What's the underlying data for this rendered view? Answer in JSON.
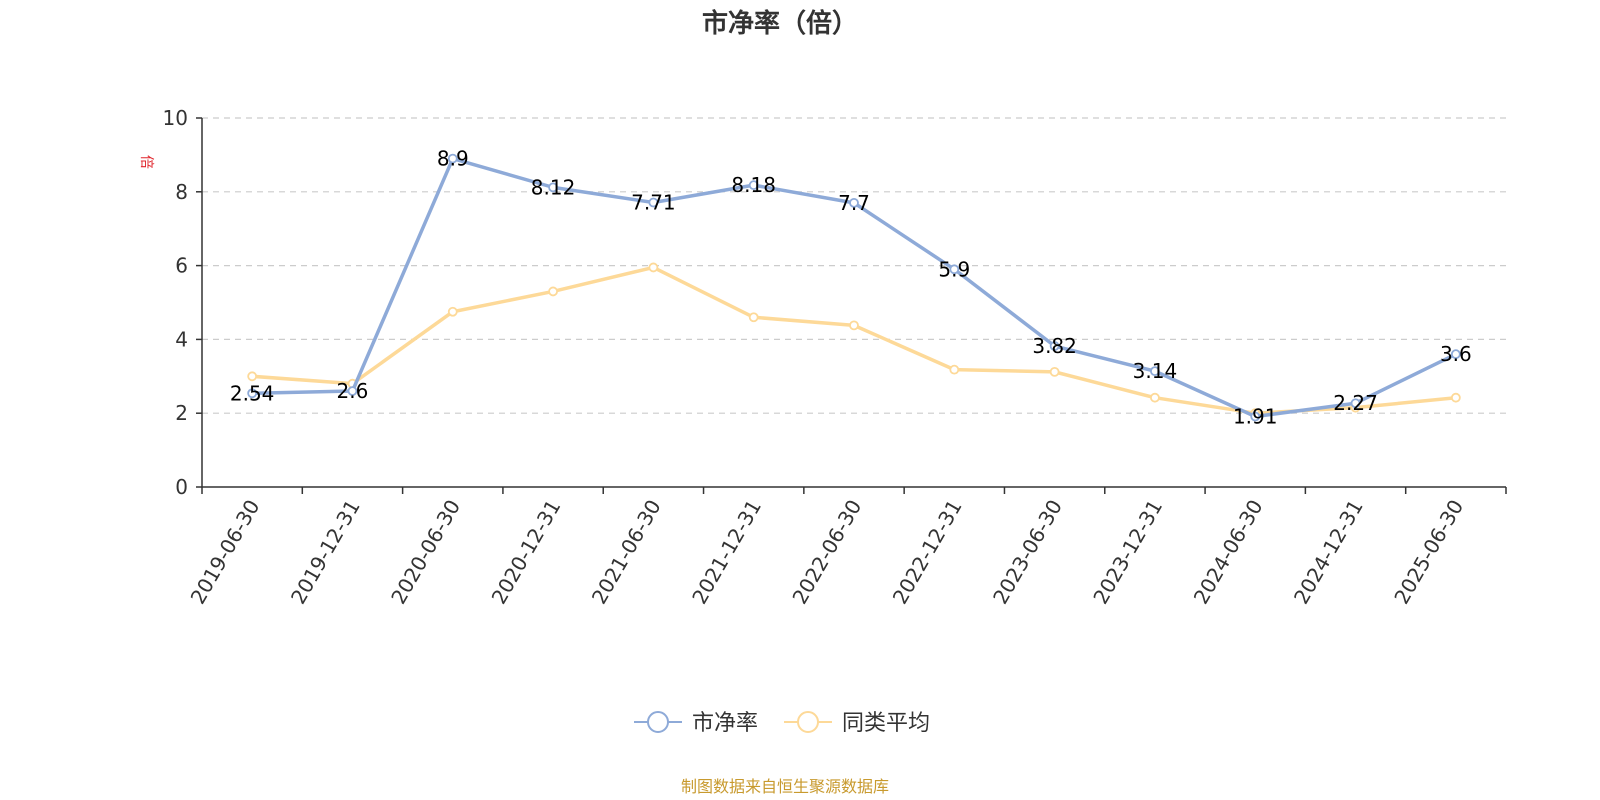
{
  "chart_data": {
    "type": "line",
    "title": "市净率（倍）",
    "ylabel": "倍",
    "xlabel": "",
    "ylim": [
      0,
      10
    ],
    "yticks": [
      "0",
      "2",
      "4",
      "6",
      "8",
      "10"
    ],
    "grid": true,
    "legend_position": "bottom-center",
    "categories": [
      "2019-06-30",
      "2019-12-31",
      "2020-06-30",
      "2020-12-31",
      "2021-06-30",
      "2021-12-31",
      "2022-06-30",
      "2022-12-31",
      "2023-06-30",
      "2023-12-31",
      "2024-06-30",
      "2024-12-31",
      "2025-06-30"
    ],
    "series": [
      {
        "name": "市净率",
        "color": "#8eaad8",
        "values": [
          2.54,
          2.6,
          8.9,
          8.12,
          7.71,
          8.18,
          7.7,
          5.9,
          3.82,
          3.14,
          1.91,
          2.27,
          3.6
        ],
        "labels": [
          "2.54",
          "2.6",
          "8.9",
          "8.12",
          "7.71",
          "8.18",
          "7.7",
          "5.9",
          "3.82",
          "3.14",
          "1.91",
          "2.27",
          "3.6"
        ]
      },
      {
        "name": "同类平均",
        "color": "#fdd998",
        "values": [
          3.0,
          2.8,
          4.75,
          5.3,
          5.95,
          4.6,
          4.38,
          3.18,
          3.12,
          2.42,
          2.0,
          2.15,
          2.42
        ]
      }
    ]
  },
  "source_note": "制图数据来自恒生聚源数据库",
  "colors": {
    "axis": "#333333",
    "grid": "#cccccc",
    "unit_label": "#e0262d",
    "source_note": "#c89a2e"
  }
}
